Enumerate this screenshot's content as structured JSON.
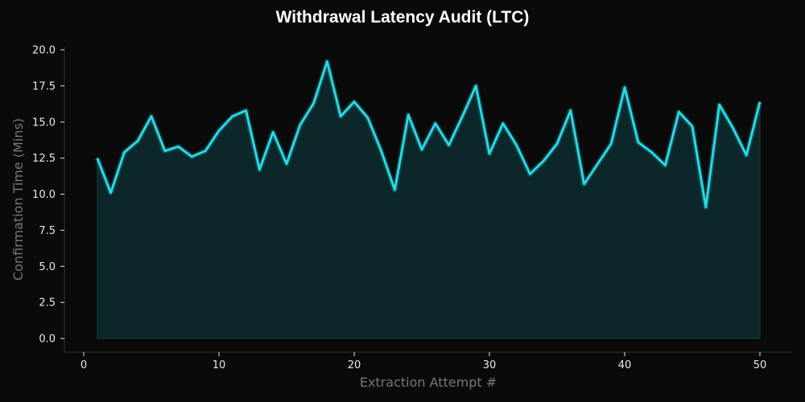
{
  "chart_data": {
    "type": "area",
    "title": "Withdrawal Latency Audit (LTC)",
    "xlabel": "Extraction Attempt #",
    "ylabel": "Confirmation Time (Mins)",
    "xlim": [
      -1,
      52.3
    ],
    "ylim": [
      -0.9,
      20.5
    ],
    "xticks": [
      0,
      10,
      20,
      30,
      40,
      50
    ],
    "yticks": [
      "0.0",
      "2.5",
      "5.0",
      "7.5",
      "10.0",
      "12.5",
      "15.0",
      "17.5",
      "20.0"
    ],
    "grid": false,
    "legend": null,
    "series": [
      {
        "name": "Confirmation Time",
        "color": "#2ad8e6",
        "fill_color": "#0c2a2c",
        "x": [
          1,
          2,
          3,
          4,
          5,
          6,
          7,
          8,
          9,
          10,
          11,
          12,
          13,
          14,
          15,
          16,
          17,
          18,
          19,
          20,
          21,
          22,
          23,
          24,
          25,
          26,
          27,
          28,
          29,
          30,
          31,
          32,
          33,
          34,
          35,
          36,
          37,
          38,
          39,
          40,
          41,
          42,
          43,
          44,
          45,
          46,
          47,
          48,
          49,
          50
        ],
        "values": [
          12.5,
          10.1,
          12.9,
          13.7,
          15.4,
          13.0,
          13.3,
          12.6,
          13.0,
          14.4,
          15.4,
          15.8,
          11.7,
          14.3,
          12.1,
          14.8,
          16.3,
          19.2,
          15.4,
          16.4,
          15.3,
          13.0,
          10.3,
          15.5,
          13.1,
          14.9,
          13.4,
          15.4,
          17.5,
          12.8,
          14.9,
          13.4,
          11.4,
          12.3,
          13.5,
          15.8,
          10.7,
          12.1,
          13.5,
          17.4,
          13.6,
          12.9,
          12.0,
          15.7,
          14.7,
          9.1,
          16.2,
          14.6,
          12.7,
          16.4
        ]
      }
    ]
  },
  "colors": {
    "background": "#0a0a0a",
    "line": "#2ad8e6",
    "fill": "#0c2a2c",
    "spine": "#333333",
    "tick_text": "#e8e8e8",
    "axis_label": "#777777"
  }
}
